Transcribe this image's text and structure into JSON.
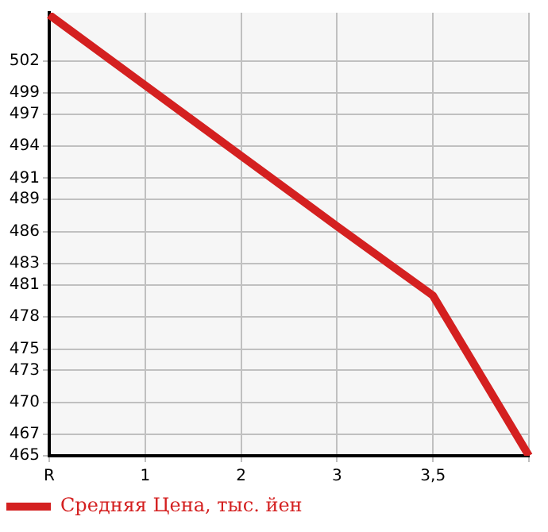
{
  "chart_data": {
    "type": "line",
    "categories": [
      "R",
      "1",
      "2",
      "3",
      "3,5",
      null
    ],
    "series": [
      {
        "name": "Средняя Цена, тыс. йен",
        "color": "#d42020",
        "values": [
          506.3,
          499.7,
          493.1,
          486.5,
          480,
          465
        ]
      }
    ],
    "ylim": [
      465,
      506.5
    ],
    "yticks": [
      465,
      467,
      470,
      473,
      475,
      478,
      481,
      483,
      486,
      489,
      491,
      494,
      497,
      499,
      502
    ],
    "grid": true,
    "legend": "bottom left",
    "marker": "none",
    "line_style": "solid"
  }
}
